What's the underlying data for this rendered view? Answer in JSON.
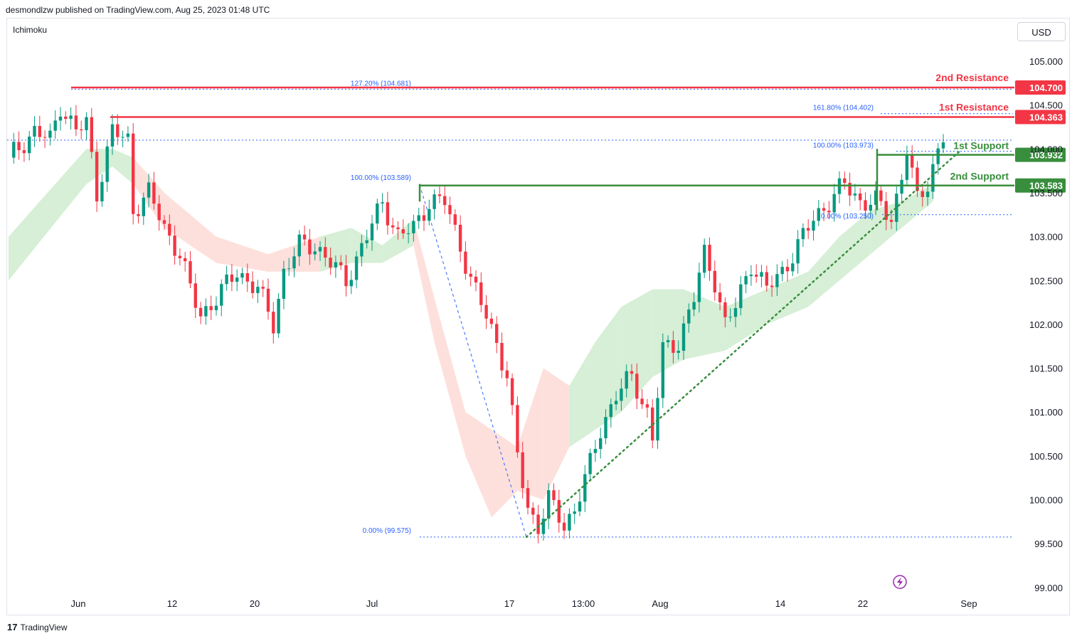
{
  "header": {
    "published": "desmondlzw published on TradingView.com, Aug 25, 2023 01:48 UTC"
  },
  "indicator": "Ichimoku",
  "currency": "USD",
  "footer": {
    "brand": "TradingView"
  },
  "colors": {
    "resistance": "#f23645",
    "support": "#388e3c",
    "fib": "#2962ff",
    "up": "#089981",
    "down": "#f23645",
    "cloud_up": "#d6efd6",
    "cloud_down": "#fde0dc",
    "trendline": "#388e3c"
  },
  "chart_data": {
    "type": "candlestick",
    "x_ticks": [
      "Jun",
      "12",
      "20",
      "Jul",
      "17",
      "13:00",
      "Aug",
      "14",
      "22",
      "Sep"
    ],
    "y_ticks": [
      "105.000",
      "104.500",
      "104.000",
      "103.500",
      "103.000",
      "102.500",
      "102.000",
      "101.500",
      "101.000",
      "100.500",
      "100.000",
      "99.500",
      "99.000"
    ],
    "ylim": [
      98.95,
      105.25
    ],
    "price_path": [
      [
        0,
        103.9
      ],
      [
        5,
        104.2
      ],
      [
        8,
        104.1
      ],
      [
        10,
        104.5
      ],
      [
        13,
        104.2
      ],
      [
        15,
        104.3
      ],
      [
        17,
        103.5
      ],
      [
        20,
        104.2
      ],
      [
        23,
        104.1
      ],
      [
        24,
        103.3
      ],
      [
        27,
        103.5
      ],
      [
        30,
        103.1
      ],
      [
        33,
        102.8
      ],
      [
        35,
        102.4
      ],
      [
        37,
        102.1
      ],
      [
        40,
        102.3
      ],
      [
        44,
        102.6
      ],
      [
        48,
        102.4
      ],
      [
        51,
        102.0
      ],
      [
        53,
        102.6
      ],
      [
        56,
        102.9
      ],
      [
        59,
        102.9
      ],
      [
        62,
        102.7
      ],
      [
        65,
        102.5
      ],
      [
        69,
        103.0
      ],
      [
        72,
        103.4
      ],
      [
        75,
        103.0
      ],
      [
        78,
        103.1
      ],
      [
        81,
        103.4
      ],
      [
        84,
        103.4
      ],
      [
        87,
        102.9
      ],
      [
        89,
        102.5
      ],
      [
        92,
        102.1
      ],
      [
        94,
        101.8
      ],
      [
        96,
        101.4
      ],
      [
        98,
        100.5
      ],
      [
        100,
        99.9
      ],
      [
        102,
        99.7
      ],
      [
        104,
        100.0
      ],
      [
        107,
        99.7
      ],
      [
        109,
        99.9
      ],
      [
        112,
        100.4
      ],
      [
        114,
        100.8
      ],
      [
        117,
        101.2
      ],
      [
        120,
        101.4
      ],
      [
        123,
        101.0
      ],
      [
        124,
        100.7
      ],
      [
        126,
        101.7
      ],
      [
        129,
        101.8
      ],
      [
        132,
        102.3
      ],
      [
        134,
        102.8
      ],
      [
        136,
        102.5
      ],
      [
        138,
        102.0
      ],
      [
        140,
        102.2
      ],
      [
        143,
        102.7
      ],
      [
        146,
        102.4
      ],
      [
        149,
        102.6
      ],
      [
        152,
        102.9
      ],
      [
        155,
        103.2
      ],
      [
        158,
        103.4
      ],
      [
        161,
        103.6
      ],
      [
        164,
        103.4
      ],
      [
        167,
        103.4
      ],
      [
        170,
        103.2
      ],
      [
        172,
        103.7
      ],
      [
        173,
        104.0
      ],
      [
        175,
        103.4
      ],
      [
        177,
        103.6
      ],
      [
        179,
        104.0
      ],
      [
        180,
        104.15
      ]
    ],
    "ichimoku_cloud": {
      "upper": [
        [
          0,
          103.0
        ],
        [
          15,
          104.0
        ],
        [
          20,
          104.0
        ],
        [
          24,
          103.9
        ],
        [
          30,
          103.5
        ],
        [
          40,
          103.0
        ],
        [
          50,
          102.8
        ],
        [
          60,
          103.0
        ],
        [
          66,
          103.1
        ],
        [
          72,
          102.9
        ],
        [
          78,
          103.2
        ],
        [
          82,
          102.3
        ],
        [
          88,
          101.0
        ],
        [
          93,
          100.8
        ],
        [
          98,
          100.6
        ],
        [
          103,
          101.5
        ],
        [
          108,
          101.3
        ],
        [
          113,
          101.8
        ],
        [
          118,
          102.2
        ],
        [
          124,
          102.4
        ],
        [
          130,
          102.4
        ],
        [
          138,
          102.2
        ],
        [
          146,
          102.4
        ],
        [
          154,
          102.6
        ],
        [
          160,
          103.0
        ],
        [
          166,
          103.3
        ],
        [
          172,
          103.4
        ],
        [
          178,
          103.6
        ]
      ],
      "lower": [
        [
          0,
          102.5
        ],
        [
          15,
          103.6
        ],
        [
          20,
          103.8
        ],
        [
          24,
          103.6
        ],
        [
          30,
          103.1
        ],
        [
          40,
          102.7
        ],
        [
          50,
          102.6
        ],
        [
          60,
          102.6
        ],
        [
          66,
          102.7
        ],
        [
          72,
          102.7
        ],
        [
          78,
          102.9
        ],
        [
          82,
          101.8
        ],
        [
          88,
          100.5
        ],
        [
          93,
          99.8
        ],
        [
          98,
          100.1
        ],
        [
          103,
          100.0
        ],
        [
          108,
          100.6
        ],
        [
          113,
          100.8
        ],
        [
          118,
          101.0
        ],
        [
          124,
          101.4
        ],
        [
          130,
          101.6
        ],
        [
          138,
          101.7
        ],
        [
          146,
          102.0
        ],
        [
          154,
          102.2
        ],
        [
          160,
          102.5
        ],
        [
          166,
          102.8
        ],
        [
          172,
          103.1
        ],
        [
          178,
          103.4
        ]
      ]
    },
    "levels": [
      {
        "name": "2nd Resistance",
        "value": 104.7,
        "label": "104.700",
        "kind": "resistance"
      },
      {
        "name": "1st Resistance",
        "value": 104.363,
        "label": "104.363",
        "kind": "resistance"
      },
      {
        "name": "1st Support",
        "value": 103.932,
        "label": "103.932",
        "kind": "support"
      },
      {
        "name": "2nd Support",
        "value": 103.583,
        "label": "103.583",
        "kind": "support"
      }
    ],
    "fib_labels": [
      {
        "text": "127.20% (104.681)",
        "value": 104.681
      },
      {
        "text": "161.80% (104.402)",
        "value": 104.402
      },
      {
        "text": "100.00% (103.973)",
        "value": 103.973
      },
      {
        "text": "100.00% (103.589)",
        "value": 103.589
      },
      {
        "text": "0.00% (99.575)",
        "value": 99.575
      },
      {
        "text": "0.00% (103.250)",
        "value": 103.25
      }
    ],
    "trendline": {
      "start": [
        107,
        99.575
      ],
      "end": [
        183,
        103.98
      ]
    }
  }
}
